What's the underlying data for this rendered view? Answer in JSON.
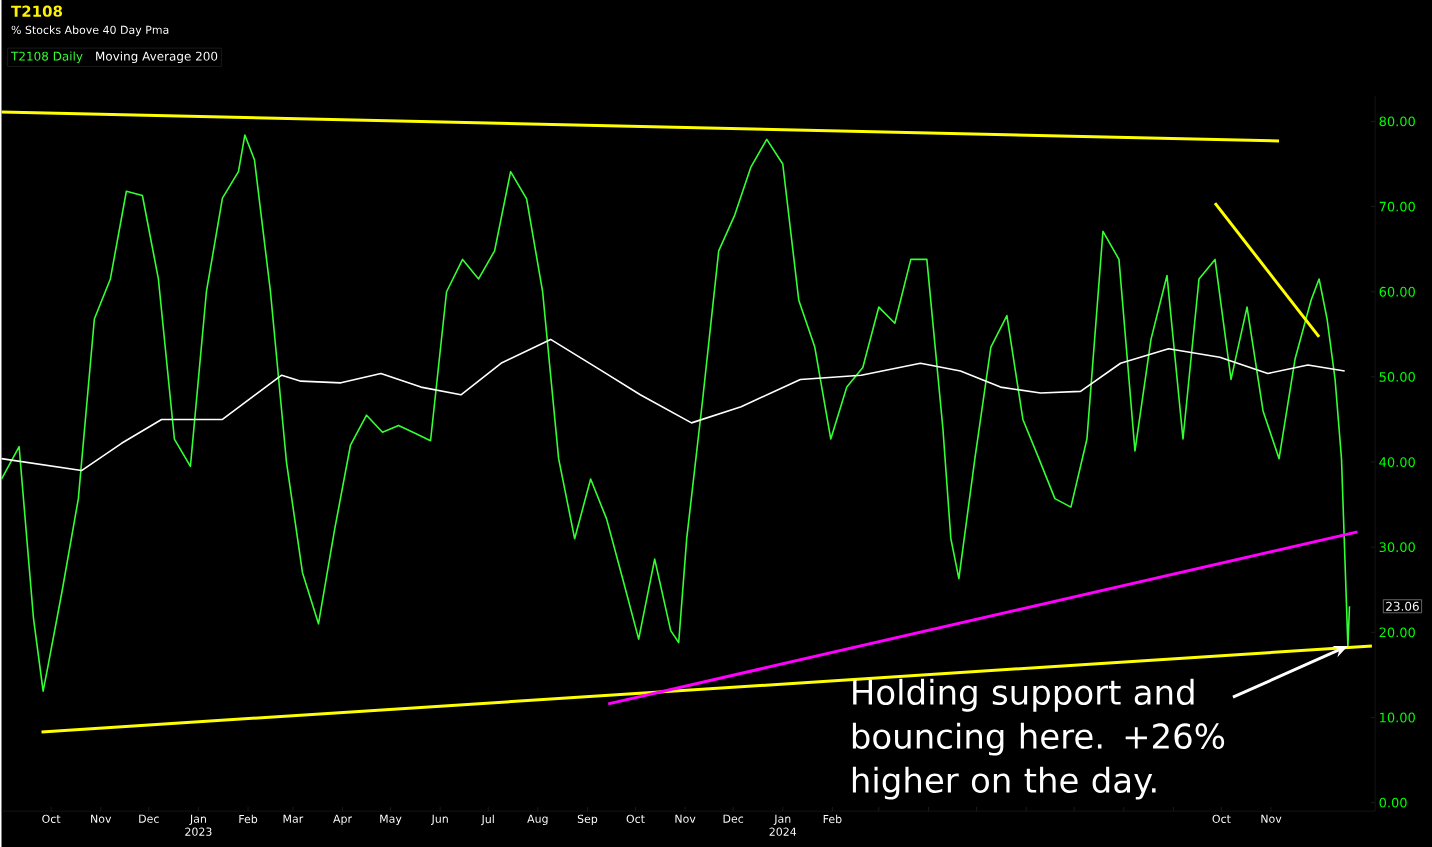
{
  "chart_data": {
    "type": "line",
    "title": "T2108",
    "subtitle": "% Stocks Above 40 Day Pma",
    "xlim": [
      "2022-08-31",
      "2025-01-05"
    ],
    "ylim": [
      -1,
      83
    ],
    "yticks": [
      {
        "value": 0,
        "label": "0.00"
      },
      {
        "value": 10,
        "label": "10.00"
      },
      {
        "value": 20,
        "label": "20.00"
      },
      {
        "value": 30,
        "label": "30.00"
      },
      {
        "value": 40,
        "label": "40.00"
      },
      {
        "value": 50,
        "label": "50.00"
      },
      {
        "value": 60,
        "label": "60.00"
      },
      {
        "value": 70,
        "label": "70.00"
      },
      {
        "value": 80,
        "label": "80.00"
      }
    ],
    "xticks": [
      {
        "value": "2022-10-01",
        "label": "Oct"
      },
      {
        "value": "2022-11-01",
        "label": "Nov"
      },
      {
        "value": "2022-12-01",
        "label": "Dec"
      },
      {
        "value": "2023-01-01",
        "label": "Jan 2023"
      },
      {
        "value": "2023-02-01",
        "label": "Feb"
      },
      {
        "value": "2023-03-01",
        "label": "Mar"
      },
      {
        "value": "2023-04-01",
        "label": "Apr"
      },
      {
        "value": "2023-05-01",
        "label": "May"
      },
      {
        "value": "2023-06-01",
        "label": "Jun"
      },
      {
        "value": "2023-07-01",
        "label": "Jul"
      },
      {
        "value": "2023-08-01",
        "label": "Aug"
      },
      {
        "value": "2023-09-01",
        "label": "Sep"
      },
      {
        "value": "2023-10-01",
        "label": "Oct"
      },
      {
        "value": "2023-11-01",
        "label": "Nov"
      },
      {
        "value": "2023-12-01",
        "label": "Dec"
      },
      {
        "value": "2024-01-01",
        "label": "Jan 2024"
      },
      {
        "value": "2024-02-01",
        "label": "Feb"
      },
      {
        "value": "2024-03-01",
        "label": null
      },
      {
        "value": "2024-04-01",
        "label": null
      },
      {
        "value": "2024-05-01",
        "label": null
      },
      {
        "value": "2024-06-01",
        "label": null
      },
      {
        "value": "2024-07-01",
        "label": null
      },
      {
        "value": "2024-08-01",
        "label": null
      },
      {
        "value": "2024-09-01",
        "label": null
      },
      {
        "value": "2024-10-01",
        "label": "Oct"
      },
      {
        "value": "2024-11-01",
        "label": "Nov"
      }
    ],
    "grid": false,
    "legend": "top left",
    "marker": "none",
    "line_style": "solid",
    "series": [
      {
        "name": "T2108 Daily",
        "color": "#33ff33",
        "x": [
          "2022-08-31",
          "2022-09-11",
          "2022-09-20",
          "2022-09-26",
          "2022-09-29",
          "2022-10-08",
          "2022-10-18",
          "2022-10-28",
          "2022-11-07",
          "2022-11-17",
          "2022-11-27",
          "2022-12-07",
          "2022-12-17",
          "2022-12-27",
          "2023-01-06",
          "2023-01-16",
          "2023-01-26",
          "2023-01-30",
          "2023-02-05",
          "2023-02-15",
          "2023-02-25",
          "2023-03-07",
          "2023-03-17",
          "2023-03-27",
          "2023-04-06",
          "2023-04-16",
          "2023-04-26",
          "2023-05-06",
          "2023-05-16",
          "2023-05-26",
          "2023-06-05",
          "2023-06-15",
          "2023-06-25",
          "2023-07-05",
          "2023-07-15",
          "2023-07-25",
          "2023-08-04",
          "2023-08-14",
          "2023-08-24",
          "2023-09-03",
          "2023-09-13",
          "2023-09-23",
          "2023-10-03",
          "2023-10-13",
          "2023-10-23",
          "2023-10-28",
          "2023-11-02",
          "2023-11-12",
          "2023-11-22",
          "2023-12-02",
          "2023-12-12",
          "2023-12-22",
          "2024-01-01",
          "2024-01-11",
          "2024-01-21",
          "2024-01-31",
          "2024-02-10",
          "2024-02-20",
          "2024-03-01",
          "2024-03-11",
          "2024-03-21",
          "2024-03-31",
          "2024-04-10",
          "2024-04-15",
          "2024-04-20",
          "2024-04-30",
          "2024-05-10",
          "2024-05-20",
          "2024-05-30",
          "2024-06-09",
          "2024-06-19",
          "2024-06-29",
          "2024-07-09",
          "2024-07-19",
          "2024-07-29",
          "2024-08-08",
          "2024-08-18",
          "2024-08-28",
          "2024-09-07",
          "2024-09-17",
          "2024-09-27",
          "2024-10-07",
          "2024-10-17",
          "2024-10-27",
          "2024-11-06",
          "2024-11-16",
          "2024-11-26",
          "2024-12-01",
          "2024-12-06",
          "2024-12-11",
          "2024-12-15",
          "2024-12-18",
          "2024-12-19",
          "2024-12-20"
        ],
        "values": [
          38,
          41.8,
          21.6,
          13.1,
          16,
          25,
          35.7,
          56.8,
          61.5,
          71.8,
          71.3,
          61.5,
          42.7,
          39.5,
          60,
          71,
          74.1,
          78.4,
          75.5,
          60,
          40,
          27,
          21,
          32,
          42,
          45.5,
          43.5,
          44.3,
          43.4,
          42.5,
          60,
          63.8,
          61.5,
          64.8,
          74.1,
          70.9,
          60,
          40.4,
          31,
          38,
          33.3,
          26.3,
          19.2,
          28.6,
          20.2,
          18.8,
          31,
          47.4,
          64.8,
          69,
          74.6,
          77.9,
          75,
          59,
          53.5,
          42.7,
          48.8,
          51.1,
          58.2,
          56.3,
          63.8,
          63.8,
          44,
          31,
          26.3,
          40.4,
          53.5,
          57.2,
          45,
          40.4,
          35.7,
          34.7,
          42.7,
          67.1,
          63.8,
          41.3,
          54.4,
          61.9,
          42.7,
          61.5,
          63.8,
          49.7,
          58.2,
          46,
          40.4,
          52.1,
          59,
          61.5,
          56.8,
          49.7,
          40.4,
          23.9,
          18.4,
          23.06
        ]
      },
      {
        "name": "Moving Average 200",
        "color": "#ffffff",
        "x": [
          "2022-08-31",
          "2022-10-20",
          "2022-11-14",
          "2022-12-09",
          "2023-01-16",
          "2023-02-22",
          "2023-03-06",
          "2023-03-31",
          "2023-04-25",
          "2023-05-20",
          "2023-06-14",
          "2023-07-09",
          "2023-08-09",
          "2023-09-10",
          "2023-10-04",
          "2023-11-05",
          "2023-12-06",
          "2024-01-12",
          "2024-02-19",
          "2024-03-27",
          "2024-04-21",
          "2024-05-16",
          "2024-06-10",
          "2024-07-05",
          "2024-07-30",
          "2024-08-29",
          "2024-09-30",
          "2024-10-30",
          "2024-11-24",
          "2024-12-17"
        ],
        "values": [
          40.4,
          39,
          42.2,
          45,
          45,
          50.2,
          49.5,
          49.3,
          50.4,
          48.8,
          47.9,
          51.6,
          54.4,
          50.7,
          47.9,
          44.6,
          46.5,
          49.7,
          50.2,
          51.6,
          50.7,
          48.8,
          48.1,
          48.3,
          51.6,
          53.3,
          52.3,
          50.4,
          51.4,
          50.7
        ]
      },
      {
        "color": "#ffff00",
        "x": [
          "2022-08-31",
          "2024-11-06"
        ],
        "values": [
          81.1,
          77.7
        ]
      },
      {
        "color": "#ffff00",
        "x": [
          "2022-09-25",
          "2025-01-03"
        ],
        "values": [
          8.3,
          18.4
        ]
      },
      {
        "color": "#ff00ff",
        "x": [
          "2023-09-14",
          "2024-12-25"
        ],
        "values": [
          11.6,
          31.8
        ]
      },
      {
        "color": "#ffff00",
        "x": [
          "2024-09-27",
          "2024-12-01"
        ],
        "values": [
          70.4,
          54.7
        ]
      }
    ],
    "annotations": [
      {
        "text": "Holding support and bouncing here. +26% higher on the day.",
        "x": "2024-12-19",
        "y": 18.4
      },
      "23.06"
    ]
  }
}
